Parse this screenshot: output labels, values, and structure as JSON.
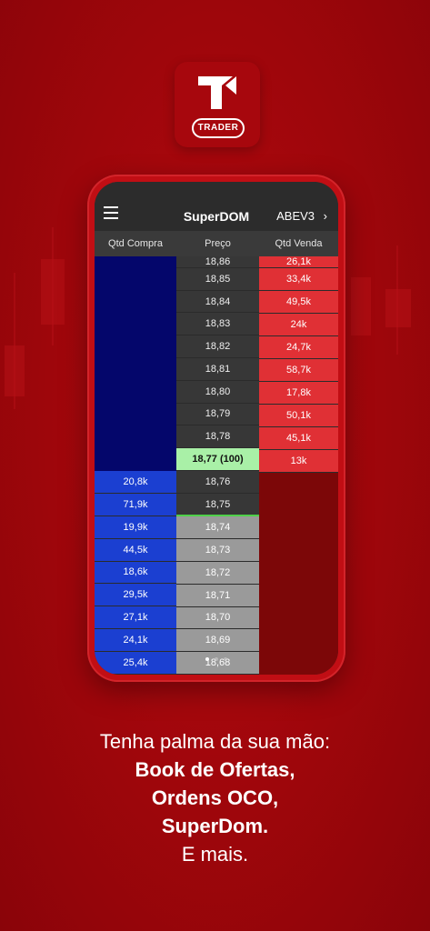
{
  "app": {
    "badge_label": "TRADER"
  },
  "superdom": {
    "title": "SuperDOM",
    "ticker": "ABEV3",
    "headers": {
      "buy": "Qtd Compra",
      "price": "Preço",
      "sell": "Qtd Venda"
    },
    "prices_top": [
      "18,86",
      "18,85",
      "18,84",
      "18,83",
      "18,82",
      "18,81",
      "18,80",
      "18,79",
      "18,78"
    ],
    "current_price": "18,77 (100)",
    "prices_mid": [
      "18,76",
      "18,75"
    ],
    "prices_bottom": [
      "18,74",
      "18,73",
      "18,72",
      "18,71",
      "18,70",
      "18,69",
      "18,68"
    ],
    "sell_qty": [
      "26,1k",
      "33,4k",
      "49,5k",
      "24k",
      "24,7k",
      "58,7k",
      "17,8k",
      "50,1k",
      "45,1k",
      "13k"
    ],
    "buy_qty": [
      "20,8k",
      "71,9k",
      "19,9k",
      "44,5k",
      "18,6k",
      "29,5k",
      "27,1k",
      "24,1k",
      "25,4k"
    ]
  },
  "caption": {
    "line1": "Tenha palma da sua mão:",
    "line2": "Book de Ofertas,",
    "line3": "Ordens OCO,",
    "line4": "SuperDom.",
    "line5": "E mais."
  },
  "colors": {
    "background": "#9e060b",
    "buy": "#1b3fd1",
    "sell": "#e03035",
    "current": "#a9f0a7"
  },
  "page_indicator": {
    "count": 3,
    "active": 1
  }
}
